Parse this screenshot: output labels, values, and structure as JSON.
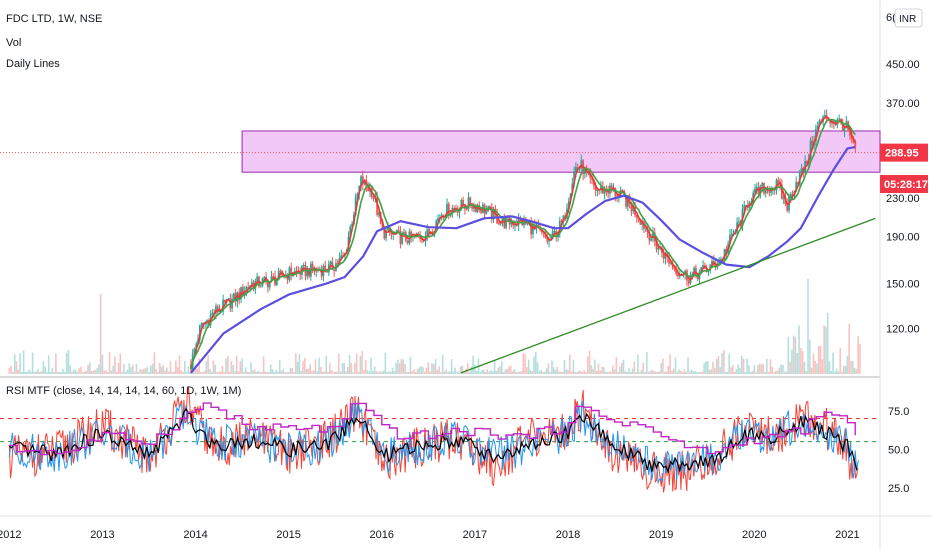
{
  "header": {
    "symbol_line": "FDC LTD, 1W, NSE",
    "vol_label": "Vol",
    "daily_lines_label": "Daily Lines",
    "currency_badge": "INR",
    "price_axis_top_tick": "6("
  },
  "indicator": {
    "label": "RSI MTF (close, 14, 14, 14, 14, 60, 1D, 1W, 1M)"
  },
  "price_tags": {
    "last_price": "288.95",
    "countdown": "05:28:17"
  },
  "colors": {
    "candle_up": "#26a69a",
    "candle_down": "#ef5350",
    "ma_fast": "#e53935",
    "ma_mid": "#43a047",
    "ma_slow": "#5b4fe0",
    "zone_fill": "#e8a3f0",
    "zone_border": "#9c27b0",
    "trendline": "#2e8b24",
    "rsi_blue": "#2196f3",
    "rsi_red": "#f44336",
    "rsi_black": "#000000",
    "rsi_purple": "#c026c8",
    "price_tag": "#f23645"
  },
  "chart_data": {
    "type": "line",
    "title": "FDC LTD, 1W, NSE",
    "x_axis": {
      "ticks": [
        "2012",
        "2013",
        "2014",
        "2015",
        "2016",
        "2017",
        "2018",
        "2019",
        "2020",
        "2021"
      ],
      "range": [
        2011.9,
        2021.35
      ]
    },
    "price_axis": {
      "scale": "log",
      "ticks": [
        120,
        150,
        190,
        230,
        290,
        370,
        450
      ],
      "range": [
        95,
        620
      ]
    },
    "rsi_axis": {
      "ticks": [
        25.0,
        50.0,
        75.0
      ],
      "range": [
        8,
        95
      ],
      "levels": {
        "upper": 70,
        "middle": 55
      }
    },
    "resistance_zone": {
      "from_x": 2014.5,
      "to_x": 2021.35,
      "low": 262,
      "high": 322
    },
    "last_price_line": 288.95,
    "trendline": {
      "from": [
        2016.85,
        96
      ],
      "to": [
        2021.3,
        208
      ]
    },
    "series": [
      {
        "name": "FDC LTD weekly close",
        "x": [
          2013.95,
          2014.05,
          2014.2,
          2014.4,
          2014.6,
          2014.8,
          2015.0,
          2015.2,
          2015.45,
          2015.6,
          2015.7,
          2015.78,
          2015.82,
          2015.9,
          2016.0,
          2016.15,
          2016.3,
          2016.5,
          2016.65,
          2016.8,
          2016.95,
          2017.1,
          2017.3,
          2017.5,
          2017.65,
          2017.8,
          2017.95,
          2018.0,
          2018.08,
          2018.15,
          2018.2,
          2018.3,
          2018.45,
          2018.6,
          2018.75,
          2018.85,
          2018.95,
          2019.05,
          2019.15,
          2019.3,
          2019.45,
          2019.55,
          2019.65,
          2019.75,
          2019.85,
          2019.95,
          2020.1,
          2020.25,
          2020.35,
          2020.45,
          2020.55,
          2020.62,
          2020.7,
          2020.78,
          2020.85,
          2020.93,
          2021.0,
          2021.05,
          2021.1
        ],
        "close": [
          100,
          120,
          130,
          138,
          150,
          152,
          158,
          160,
          162,
          172,
          215,
          252,
          245,
          238,
          195,
          190,
          188,
          192,
          215,
          220,
          224,
          218,
          204,
          205,
          196,
          185,
          205,
          230,
          268,
          270,
          256,
          240,
          240,
          230,
          212,
          196,
          182,
          172,
          162,
          155,
          160,
          164,
          170,
          188,
          205,
          230,
          242,
          245,
          220,
          250,
          270,
          305,
          335,
          345,
          338,
          335,
          325,
          300,
          289
        ]
      },
      {
        "name": "slow moving average",
        "x": [
          2013.95,
          2014.3,
          2014.7,
          2015.0,
          2015.4,
          2015.6,
          2015.8,
          2015.95,
          2016.2,
          2016.5,
          2016.8,
          2017.1,
          2017.4,
          2017.6,
          2017.85,
          2018.0,
          2018.2,
          2018.4,
          2018.6,
          2018.8,
          2019.0,
          2019.2,
          2019.45,
          2019.7,
          2019.95,
          2020.15,
          2020.35,
          2020.5,
          2020.7,
          2020.85,
          2021.0,
          2021.08
        ],
        "close": [
          96,
          117,
          132,
          142,
          150,
          155,
          172,
          195,
          205,
          199,
          198,
          208,
          210,
          205,
          198,
          198,
          213,
          227,
          233,
          225,
          206,
          187,
          175,
          165,
          163,
          172,
          185,
          198,
          235,
          265,
          295,
          297
        ]
      },
      {
        "name": "RSI daily",
        "x": [
          2012.0,
          2012.5,
          2013.0,
          2013.5,
          2013.9,
          2014.2,
          2014.6,
          2015.0,
          2015.4,
          2015.75,
          2016.0,
          2016.4,
          2016.8,
          2017.2,
          2017.6,
          2018.0,
          2018.15,
          2018.5,
          2018.9,
          2019.3,
          2019.6,
          2019.9,
          2020.2,
          2020.5,
          2020.75,
          2021.0,
          2021.1
        ],
        "rsi": [
          45,
          48,
          65,
          44,
          80,
          50,
          58,
          48,
          55,
          74,
          40,
          52,
          58,
          40,
          57,
          62,
          78,
          47,
          35,
          37,
          44,
          66,
          57,
          70,
          65,
          50,
          25
        ]
      },
      {
        "name": "RSI weekly",
        "x": [
          2012.0,
          2012.5,
          2013.0,
          2013.5,
          2013.9,
          2014.2,
          2014.6,
          2015.0,
          2015.4,
          2015.75,
          2016.0,
          2016.4,
          2016.8,
          2017.2,
          2017.6,
          2018.0,
          2018.15,
          2018.5,
          2018.9,
          2019.3,
          2019.6,
          2019.9,
          2020.2,
          2020.5,
          2020.75,
          2021.0,
          2021.1
        ],
        "rsi": [
          50,
          47,
          60,
          46,
          72,
          53,
          56,
          50,
          52,
          72,
          45,
          52,
          57,
          45,
          52,
          60,
          72,
          52,
          40,
          40,
          44,
          60,
          58,
          68,
          62,
          52,
          38
        ]
      },
      {
        "name": "RSI monthly",
        "x": [
          2012.0,
          2012.6,
          2013.0,
          2013.5,
          2013.9,
          2014.1,
          2014.6,
          2015.0,
          2015.5,
          2015.7,
          2015.9,
          2016.2,
          2016.6,
          2017.0,
          2017.4,
          2017.9,
          2018.1,
          2018.4,
          2018.8,
          2019.2,
          2019.6,
          2019.9,
          2020.2,
          2020.5,
          2020.7,
          2021.0,
          2021.1
        ],
        "rsi": [
          50,
          48,
          59,
          55,
          72,
          80,
          63,
          64,
          63,
          80,
          70,
          58,
          60,
          62,
          58,
          63,
          77,
          70,
          65,
          52,
          48,
          56,
          58,
          63,
          72,
          70,
          55
        ]
      }
    ]
  }
}
